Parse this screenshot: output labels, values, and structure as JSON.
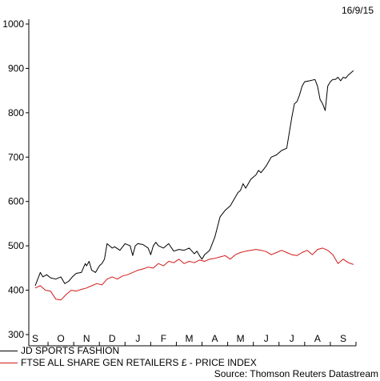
{
  "date_label": "16/9/15",
  "source": "Source: Thomson Reuters Datastream",
  "chart_data": {
    "type": "line",
    "ylim": [
      300,
      1000
    ],
    "y_ticks": [
      300,
      400,
      500,
      600,
      700,
      800,
      900,
      1000
    ],
    "x_ticks": [
      "S",
      "O",
      "N",
      "D",
      "J",
      "F",
      "M",
      "A",
      "M",
      "J",
      "J",
      "A",
      "S"
    ],
    "x_range_months": [
      0,
      12.5
    ],
    "grid": false,
    "legend_placement": "bottom-left",
    "series": [
      {
        "name": "JD SPORTS FASHION",
        "color": "#000000",
        "x": [
          0.0,
          0.1,
          0.2,
          0.3,
          0.45,
          0.6,
          0.8,
          1.0,
          1.15,
          1.3,
          1.45,
          1.6,
          1.8,
          1.95,
          2.0,
          2.1,
          2.2,
          2.35,
          2.5,
          2.6,
          2.7,
          2.8,
          2.9,
          3.0,
          3.1,
          3.3,
          3.5,
          3.7,
          3.8,
          3.9,
          4.0,
          4.2,
          4.4,
          4.5,
          4.6,
          4.7,
          4.8,
          5.0,
          5.2,
          5.4,
          5.6,
          5.8,
          6.0,
          6.2,
          6.3,
          6.4,
          6.5,
          6.6,
          6.8,
          7.0,
          7.2,
          7.4,
          7.5,
          7.6,
          7.7,
          7.9,
          8.0,
          8.1,
          8.2,
          8.4,
          8.6,
          8.7,
          8.8,
          9.0,
          9.2,
          9.4,
          9.5,
          9.6,
          9.8,
          10.0,
          10.1,
          10.2,
          10.3,
          10.4,
          10.5,
          10.7,
          10.9,
          11.0,
          11.1,
          11.2,
          11.3,
          11.4,
          11.5,
          11.6,
          11.7,
          11.8,
          11.9,
          12.0,
          12.1,
          12.2,
          12.3,
          12.4
        ],
        "values": [
          410,
          425,
          440,
          430,
          435,
          428,
          425,
          430,
          415,
          420,
          430,
          438,
          440,
          460,
          455,
          465,
          445,
          440,
          455,
          460,
          470,
          505,
          500,
          495,
          498,
          490,
          505,
          500,
          478,
          500,
          505,
          503,
          495,
          480,
          500,
          508,
          500,
          495,
          505,
          488,
          492,
          490,
          495,
          482,
          488,
          478,
          470,
          480,
          490,
          520,
          565,
          580,
          585,
          590,
          600,
          620,
          625,
          640,
          630,
          650,
          660,
          670,
          665,
          680,
          700,
          705,
          710,
          715,
          720,
          790,
          820,
          825,
          840,
          860,
          870,
          872,
          875,
          860,
          830,
          820,
          805,
          860,
          870,
          875,
          875,
          880,
          872,
          880,
          878,
          885,
          890,
          895
        ]
      },
      {
        "name": "FTSE ALL SHARE GEN RETAILERS £ - PRICE INDEX",
        "color": "#d11a1a",
        "x": [
          0.0,
          0.2,
          0.4,
          0.6,
          0.8,
          1.0,
          1.2,
          1.4,
          1.6,
          1.8,
          2.0,
          2.2,
          2.4,
          2.6,
          2.8,
          3.0,
          3.2,
          3.4,
          3.6,
          3.8,
          4.0,
          4.2,
          4.4,
          4.6,
          4.8,
          5.0,
          5.2,
          5.4,
          5.6,
          5.8,
          6.0,
          6.2,
          6.4,
          6.6,
          6.8,
          7.0,
          7.2,
          7.4,
          7.6,
          7.8,
          8.0,
          8.2,
          8.4,
          8.6,
          8.8,
          9.0,
          9.2,
          9.4,
          9.6,
          9.8,
          10.0,
          10.2,
          10.4,
          10.6,
          10.8,
          11.0,
          11.2,
          11.4,
          11.6,
          11.8,
          12.0,
          12.2,
          12.4
        ],
        "values": [
          405,
          410,
          400,
          398,
          380,
          378,
          390,
          400,
          398,
          402,
          405,
          410,
          415,
          412,
          425,
          430,
          425,
          432,
          435,
          440,
          445,
          448,
          452,
          450,
          460,
          455,
          465,
          462,
          470,
          460,
          465,
          462,
          468,
          465,
          470,
          472,
          475,
          478,
          470,
          480,
          485,
          488,
          490,
          492,
          490,
          487,
          480,
          485,
          490,
          485,
          480,
          478,
          485,
          490,
          480,
          492,
          495,
          490,
          480,
          460,
          470,
          462,
          458
        ]
      }
    ]
  }
}
